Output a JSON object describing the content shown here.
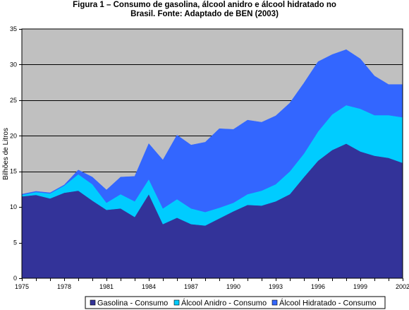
{
  "chart_data": {
    "type": "area",
    "stacked": true,
    "title": "Figura 1 – Consumo de gasolina, álcool anidro e álcool hidratado no\nBrasil. Fonte: Adaptado de BEN (2003)",
    "xlabel": "",
    "ylabel": "Bilhões de Litros",
    "xlim": [
      1975,
      2002
    ],
    "ylim": [
      0,
      35
    ],
    "xticks": [
      1975,
      1978,
      1981,
      1984,
      1987,
      1990,
      1993,
      1996,
      1999,
      2002
    ],
    "yticks": [
      0,
      5,
      10,
      15,
      20,
      25,
      30,
      35
    ],
    "grid": true,
    "legend_position": "bottom",
    "plot_background": "#C0C0C0",
    "x": [
      1975,
      1976,
      1977,
      1978,
      1979,
      1980,
      1981,
      1982,
      1983,
      1984,
      1985,
      1986,
      1987,
      1988,
      1989,
      1990,
      1991,
      1992,
      1993,
      1994,
      1995,
      1996,
      1997,
      1998,
      1999,
      2000,
      2001,
      2002
    ],
    "series": [
      {
        "name": "Gasolina - Consumo",
        "color": "#333399",
        "values": [
          11.5,
          11.7,
          11.2,
          12.0,
          12.3,
          10.9,
          9.6,
          9.8,
          8.6,
          11.8,
          7.6,
          8.5,
          7.6,
          7.4,
          8.4,
          9.4,
          10.3,
          10.2,
          10.8,
          11.8,
          14.2,
          16.5,
          18.0,
          18.9,
          17.8,
          17.2,
          16.9,
          16.2
        ]
      },
      {
        "name": "Álcool Anidro - Consumo",
        "color": "#00CCFF",
        "values": [
          0.2,
          0.4,
          0.7,
          1.0,
          2.3,
          2.3,
          1.0,
          2.0,
          2.2,
          2.1,
          2.2,
          2.6,
          2.2,
          1.9,
          1.5,
          1.2,
          1.5,
          2.1,
          2.4,
          3.2,
          3.3,
          4.1,
          5.0,
          5.4,
          6.0,
          5.7,
          6.0,
          6.4
        ]
      },
      {
        "name": "Álcool Hidratado - Consumo",
        "color": "#3366FF",
        "values": [
          0.1,
          0.1,
          0.1,
          0.1,
          0.6,
          1.0,
          1.8,
          2.4,
          3.5,
          5.0,
          6.8,
          9.0,
          8.9,
          9.8,
          11.1,
          10.3,
          10.4,
          9.6,
          9.6,
          9.6,
          9.9,
          9.8,
          8.4,
          7.8,
          7.0,
          5.5,
          4.3,
          4.6
        ]
      }
    ]
  }
}
